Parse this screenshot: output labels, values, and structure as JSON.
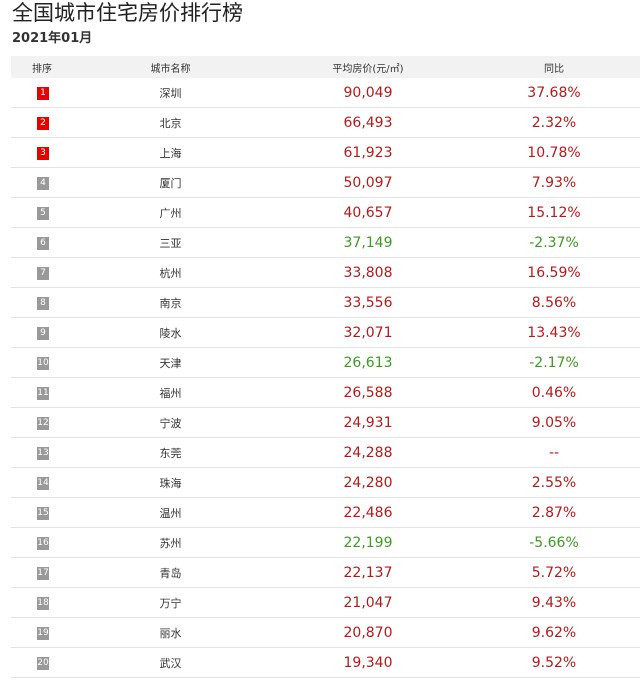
{
  "title": "全国城市住宅房价排行榜",
  "subtitle": "2021年01月",
  "headers": [
    "排序",
    "城市名称",
    "平均房价(元/㎡)",
    "同比"
  ],
  "colors": {
    "up": "#b51a1a",
    "down": "#3d9a22",
    "top_badge": "#e60000",
    "badge": "#999999"
  },
  "rows": [
    {
      "rank": "1",
      "city": "深圳",
      "price": "90,049",
      "change": "37.68%",
      "trend": "up",
      "top": true
    },
    {
      "rank": "2",
      "city": "北京",
      "price": "66,493",
      "change": "2.32%",
      "trend": "up",
      "top": true
    },
    {
      "rank": "3",
      "city": "上海",
      "price": "61,923",
      "change": "10.78%",
      "trend": "up",
      "top": true
    },
    {
      "rank": "4",
      "city": "厦门",
      "price": "50,097",
      "change": "7.93%",
      "trend": "up",
      "top": false
    },
    {
      "rank": "5",
      "city": "广州",
      "price": "40,657",
      "change": "15.12%",
      "trend": "up",
      "top": false
    },
    {
      "rank": "6",
      "city": "三亚",
      "price": "37,149",
      "change": "-2.37%",
      "trend": "down",
      "top": false
    },
    {
      "rank": "7",
      "city": "杭州",
      "price": "33,808",
      "change": "16.59%",
      "trend": "up",
      "top": false
    },
    {
      "rank": "8",
      "city": "南京",
      "price": "33,556",
      "change": "8.56%",
      "trend": "up",
      "top": false
    },
    {
      "rank": "9",
      "city": "陵水",
      "price": "32,071",
      "change": "13.43%",
      "trend": "up",
      "top": false
    },
    {
      "rank": "10",
      "city": "天津",
      "price": "26,613",
      "change": "-2.17%",
      "trend": "down",
      "top": false
    },
    {
      "rank": "11",
      "city": "福州",
      "price": "26,588",
      "change": "0.46%",
      "trend": "up",
      "top": false
    },
    {
      "rank": "12",
      "city": "宁波",
      "price": "24,931",
      "change": "9.05%",
      "trend": "up",
      "top": false
    },
    {
      "rank": "13",
      "city": "东莞",
      "price": "24,288",
      "change": "--",
      "trend": "up",
      "top": false
    },
    {
      "rank": "14",
      "city": "珠海",
      "price": "24,280",
      "change": "2.55%",
      "trend": "up",
      "top": false
    },
    {
      "rank": "15",
      "city": "温州",
      "price": "22,486",
      "change": "2.87%",
      "trend": "up",
      "top": false
    },
    {
      "rank": "16",
      "city": "苏州",
      "price": "22,199",
      "change": "-5.66%",
      "trend": "down",
      "top": false
    },
    {
      "rank": "17",
      "city": "青岛",
      "price": "22,137",
      "change": "5.72%",
      "trend": "up",
      "top": false
    },
    {
      "rank": "18",
      "city": "万宁",
      "price": "21,047",
      "change": "9.43%",
      "trend": "up",
      "top": false
    },
    {
      "rank": "19",
      "city": "丽水",
      "price": "20,870",
      "change": "9.62%",
      "trend": "up",
      "top": false
    },
    {
      "rank": "20",
      "city": "武汉",
      "price": "19,340",
      "change": "9.52%",
      "trend": "up",
      "top": false
    }
  ]
}
